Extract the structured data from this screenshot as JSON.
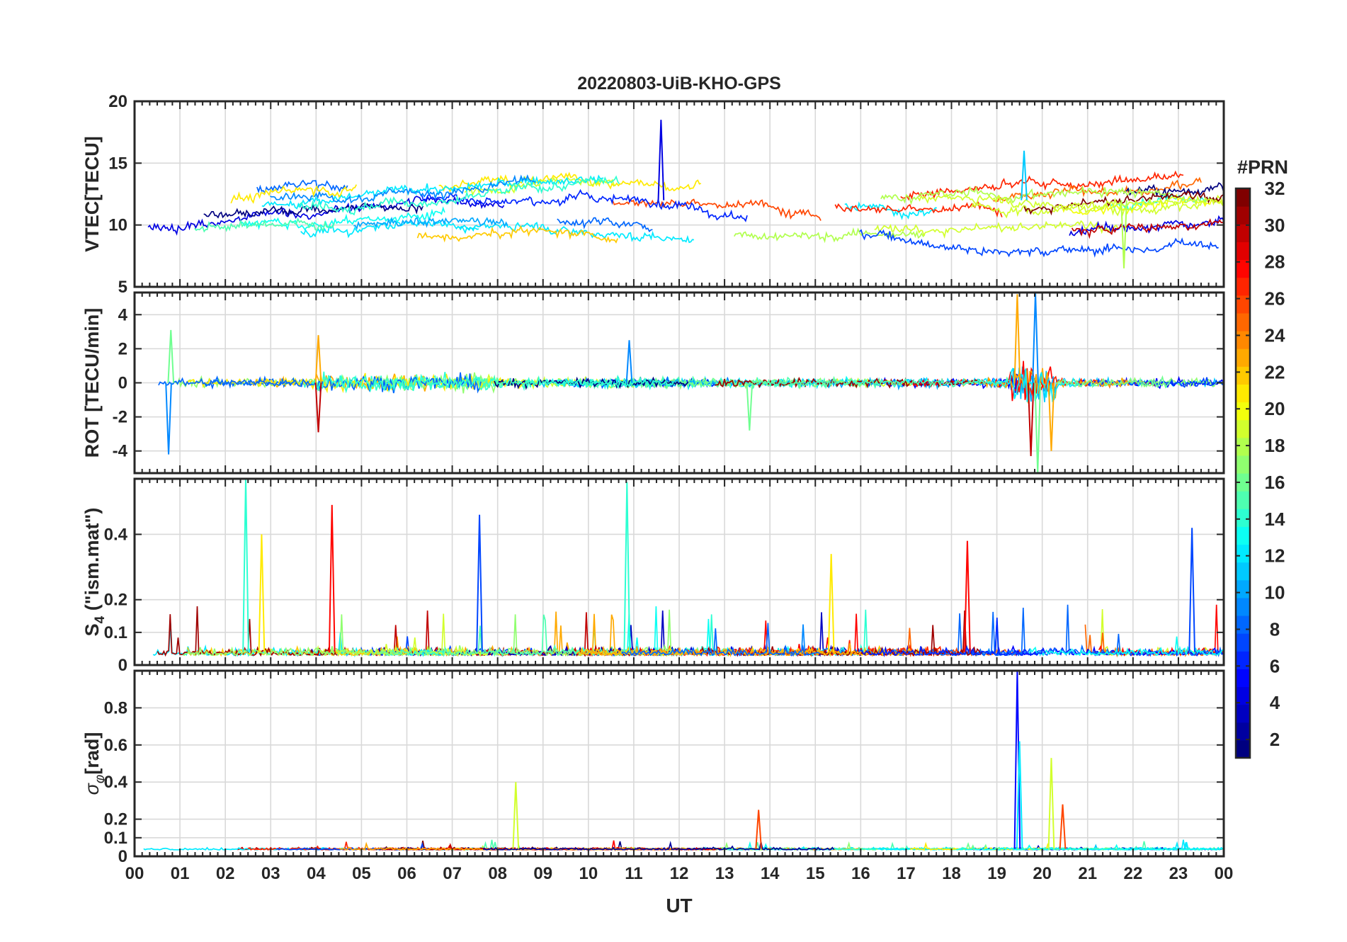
{
  "chart_data": {
    "type": "line",
    "title": "20220803-UiB-KHO-GPS",
    "xlabel": "UT",
    "x_range": [
      0,
      24
    ],
    "x_tick_labels": [
      "00",
      "01",
      "02",
      "03",
      "04",
      "05",
      "06",
      "07",
      "08",
      "09",
      "10",
      "11",
      "12",
      "13",
      "14",
      "15",
      "16",
      "17",
      "18",
      "19",
      "20",
      "21",
      "22",
      "23",
      "00"
    ],
    "colorbar": {
      "label": "#PRN",
      "range": [
        1,
        32
      ],
      "tick_labels": [
        "2",
        "4",
        "6",
        "8",
        "10",
        "12",
        "14",
        "16",
        "18",
        "20",
        "22",
        "24",
        "26",
        "28",
        "30",
        "32"
      ]
    },
    "panels": [
      {
        "ylabel": "VTEC[TECU]",
        "ylim": [
          5,
          20
        ],
        "y_ticks": [
          5,
          10,
          15,
          20
        ],
        "y_tick_labels": [
          "5",
          "10",
          "15",
          "20"
        ],
        "series_summary": "VTEC per PRN, mostly 7-15 TECU; peak ~18.5 TECU near 11.6 UT; disturbances near 19.6-20 UT",
        "events": [
          {
            "t": 11.6,
            "v": 18.5
          },
          {
            "t": 19.6,
            "v": 16.0
          },
          {
            "t": 21.8,
            "v": 6.5
          }
        ]
      },
      {
        "ylabel": "ROT [TECU/min]",
        "ylim": [
          -5.3,
          5.3
        ],
        "y_ticks": [
          -4,
          -2,
          0,
          2,
          4
        ],
        "y_tick_labels": [
          "-4",
          "-2",
          "0",
          "2",
          "4"
        ],
        "series_summary": "ROT per PRN, mostly within ±1 TECU/min; spikes to ±5 near 19.4-20 UT",
        "events": [
          {
            "t": 0.75,
            "v": -4.2
          },
          {
            "t": 0.8,
            "v": 3.1
          },
          {
            "t": 4.05,
            "v": 2.8
          },
          {
            "t": 4.05,
            "v": -2.9
          },
          {
            "t": 10.9,
            "v": 2.5
          },
          {
            "t": 13.55,
            "v": -2.8
          },
          {
            "t": 19.45,
            "v": 5.2
          },
          {
            "t": 19.75,
            "v": -4.3
          },
          {
            "t": 19.85,
            "v": 5.3
          },
          {
            "t": 19.9,
            "v": -5.3
          },
          {
            "t": 20.2,
            "v": -4.0
          }
        ]
      },
      {
        "ylabel": "S4 (\"ism.mat\")",
        "ylabel_main": "S",
        "ylabel_sub": "4",
        "ylabel_rest": " (\"ism.mat\")",
        "ylim": [
          0,
          0.57
        ],
        "y_ticks": [
          0,
          0.1,
          0.2,
          0.4
        ],
        "y_tick_labels": [
          "0",
          "0.1",
          "0.2",
          "0.4"
        ],
        "series_summary": "S4 per PRN, background 0.02-0.1 with bursts up to ~0.55",
        "events": [
          {
            "t": 2.45,
            "v": 0.57
          },
          {
            "t": 2.8,
            "v": 0.4
          },
          {
            "t": 4.35,
            "v": 0.49
          },
          {
            "t": 7.6,
            "v": 0.46
          },
          {
            "t": 10.85,
            "v": 0.56
          },
          {
            "t": 15.35,
            "v": 0.34
          },
          {
            "t": 18.35,
            "v": 0.38
          },
          {
            "t": 23.3,
            "v": 0.42
          }
        ]
      },
      {
        "ylabel": "σφ[rad]",
        "ylabel_main": "σ",
        "ylabel_sub": "φ",
        "ylabel_rest": "[rad]",
        "ylim": [
          0,
          1.0
        ],
        "y_ticks": [
          0,
          0.1,
          0.2,
          0.4,
          0.6,
          0.8
        ],
        "y_tick_labels": [
          "0",
          "0.1",
          "0.2",
          "0.4",
          "0.6",
          "0.8"
        ],
        "series_summary": "Phase scintillation per PRN, mostly 0.02-0.08 rad; saturating burst ~1.0 rad near 19.45 UT",
        "events": [
          {
            "t": 8.4,
            "v": 0.4
          },
          {
            "t": 13.75,
            "v": 0.25
          },
          {
            "t": 19.45,
            "v": 1.0
          },
          {
            "t": 19.5,
            "v": 0.62
          },
          {
            "t": 20.2,
            "v": 0.53
          },
          {
            "t": 20.45,
            "v": 0.28
          }
        ]
      }
    ]
  }
}
